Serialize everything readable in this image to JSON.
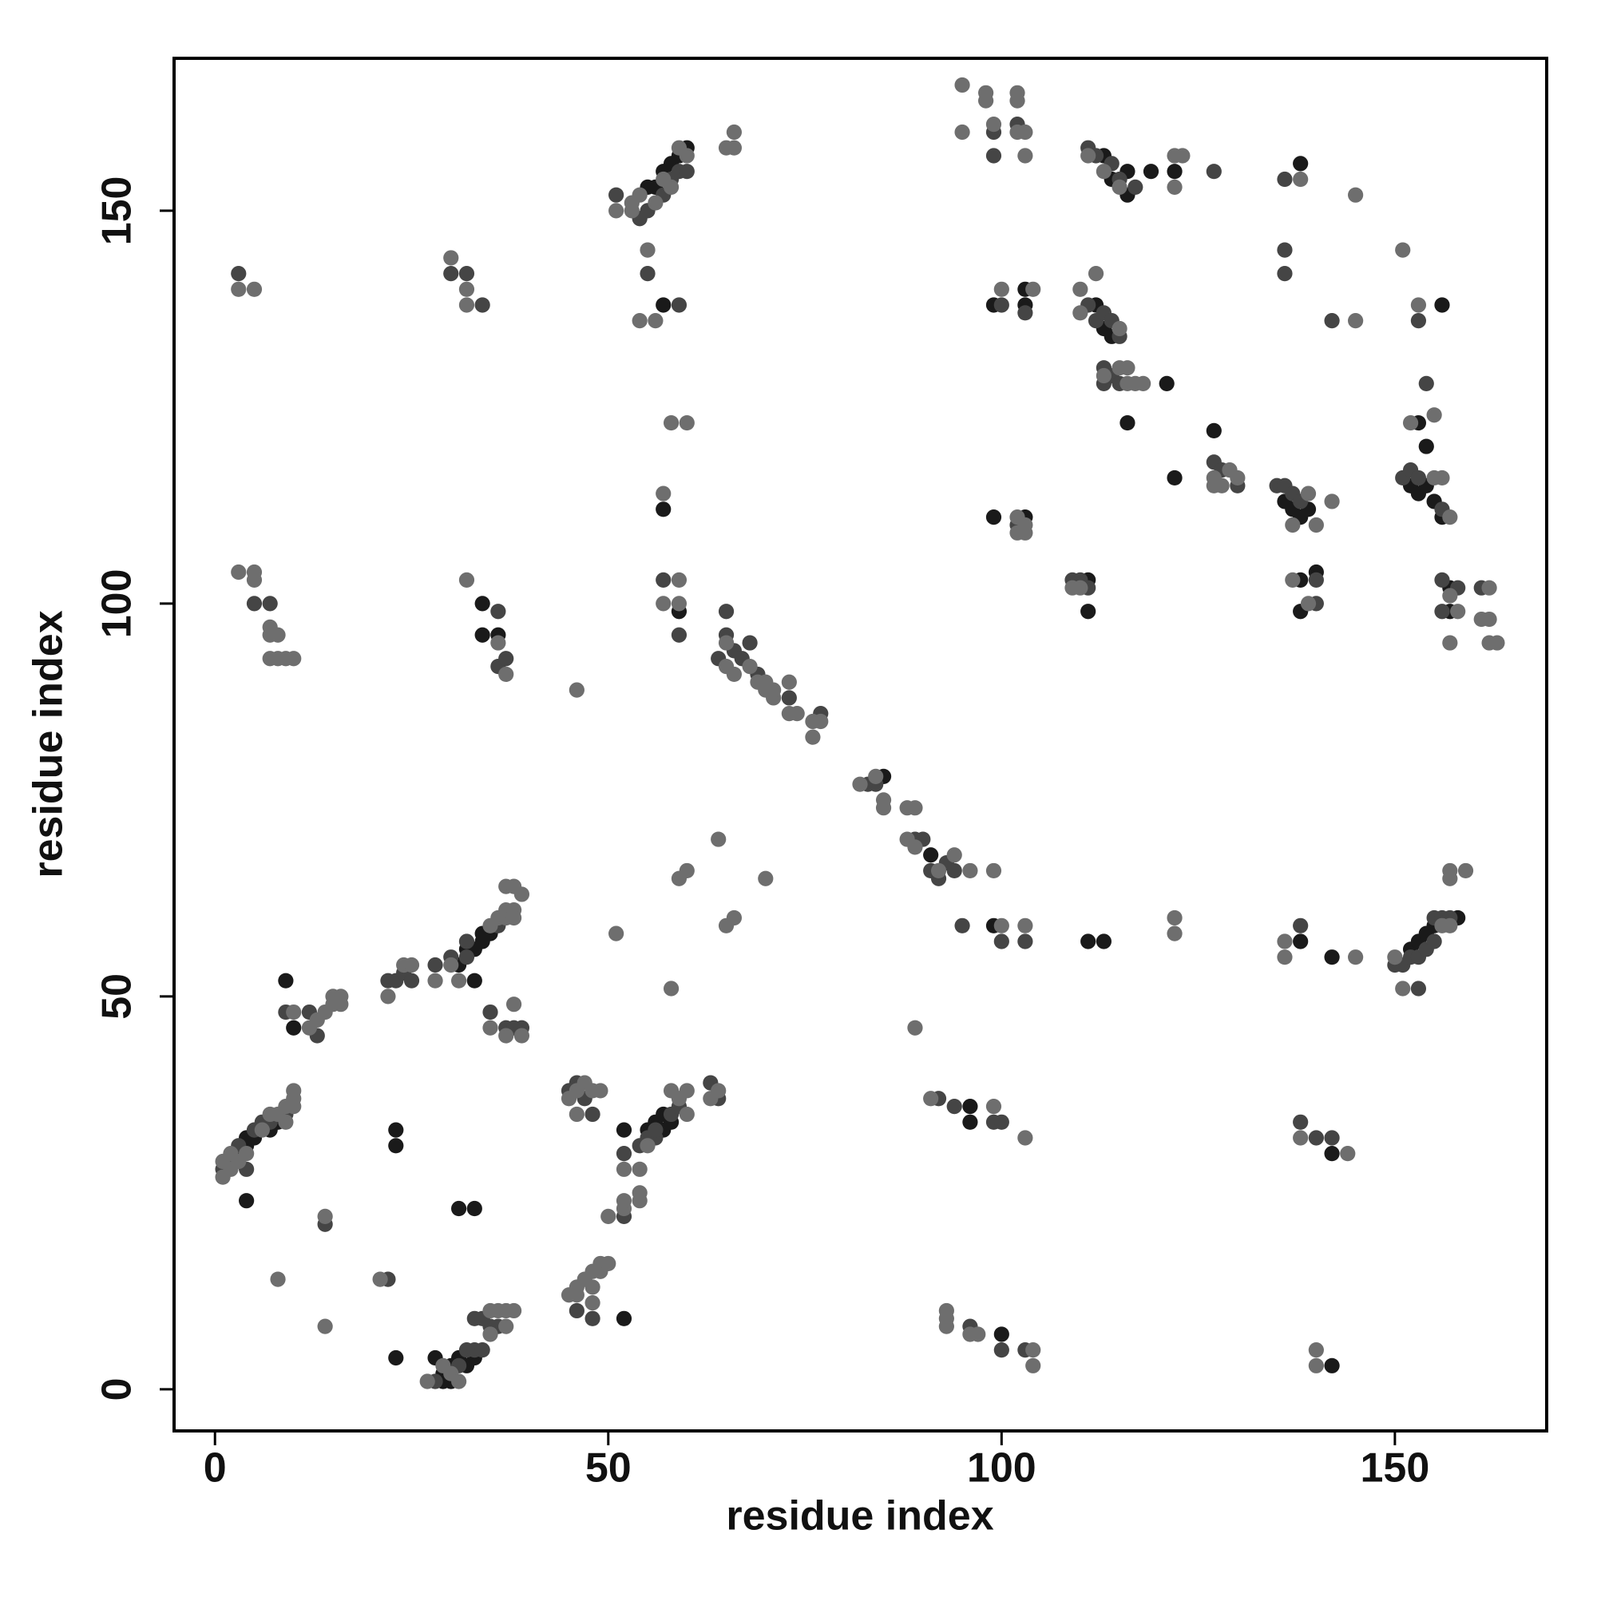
{
  "chart_data": {
    "type": "scatter",
    "x_label": "residue index",
    "y_label": "residue index",
    "xlim": [
      -5.2,
      169.3
    ],
    "ylim": [
      -5.3,
      169.4
    ],
    "xticks": [
      0,
      50,
      100,
      150
    ],
    "yticks": [
      0,
      50,
      100,
      150
    ],
    "series": [
      {
        "color": "#1a1a1a",
        "x": [
          3,
          4,
          4,
          5,
          4,
          7,
          8,
          9,
          10,
          23,
          23,
          23,
          31,
          32,
          33,
          33,
          34,
          34,
          35,
          28,
          29,
          30,
          30,
          31,
          32,
          33,
          31,
          33,
          34,
          34,
          36,
          52,
          52,
          55,
          56,
          57,
          58,
          57,
          55,
          56,
          57,
          58,
          59,
          60,
          57,
          57,
          59,
          85,
          91,
          96,
          96,
          99,
          100,
          99,
          103,
          103,
          99,
          103,
          111,
          111,
          112,
          113,
          114,
          116,
          121,
          113,
          114,
          116,
          116,
          119,
          122,
          122,
          127,
          136,
          137,
          138,
          139,
          138,
          138,
          140,
          138,
          156,
          153,
          154,
          152,
          153,
          154,
          155,
          156,
          157,
          157,
          152,
          153,
          154,
          155,
          158,
          138,
          142,
          142,
          142,
          111,
          113,
          29
        ],
        "y": [
          30,
          31,
          32,
          32,
          24,
          33,
          34,
          52,
          46,
          4,
          33,
          31,
          54,
          56,
          52,
          56,
          57,
          58,
          58,
          4,
          2,
          1,
          3,
          4,
          3,
          4,
          23,
          23,
          100,
          96,
          96,
          9,
          33,
          33,
          34,
          35,
          34,
          33,
          153,
          153,
          155,
          156,
          157,
          158,
          138,
          112,
          99,
          78,
          68,
          36,
          34,
          59,
          7,
          138,
          140,
          138,
          111,
          111,
          103,
          99,
          138,
          135,
          134,
          123,
          128,
          157,
          154,
          155,
          152,
          155,
          155,
          116,
          122,
          113,
          112,
          111,
          112,
          103,
          99,
          104,
          156,
          138,
          123,
          120,
          115,
          114,
          115,
          113,
          111,
          102,
          99,
          56,
          57,
          58,
          59,
          60,
          57,
          55,
          30,
          3,
          57,
          57,
          1
        ]
      },
      {
        "color": "#454545",
        "x": [
          1,
          2,
          3,
          5,
          6,
          7,
          9,
          4,
          9,
          12,
          13,
          14,
          22,
          22,
          23,
          24,
          25,
          28,
          30,
          32,
          32,
          36,
          35,
          37,
          38,
          39,
          28,
          31,
          32,
          33,
          34,
          33,
          35,
          36,
          34,
          36,
          36,
          37,
          5,
          7,
          3,
          30,
          32,
          34,
          45,
          46,
          47,
          48,
          46,
          48,
          52,
          52,
          54,
          55,
          56,
          56,
          58,
          59,
          63,
          64,
          51,
          54,
          55,
          57,
          58,
          59,
          60,
          55,
          59,
          57,
          59,
          65,
          65,
          66,
          64,
          67,
          68,
          69,
          73,
          77,
          83,
          84,
          89,
          90,
          91,
          92,
          93,
          94,
          92,
          94,
          99,
          100,
          95,
          100,
          103,
          96,
          100,
          99,
          102,
          99,
          100,
          103,
          102,
          109,
          110,
          111,
          111,
          112,
          113,
          114,
          115,
          113,
          113,
          114,
          115,
          111,
          112,
          114,
          115,
          117,
          127,
          127,
          128,
          130,
          135,
          136,
          137,
          138,
          140,
          140,
          136,
          136,
          136,
          142,
          153,
          154,
          151,
          152,
          153,
          156,
          156,
          158,
          156,
          161,
          150,
          151,
          152,
          153,
          153,
          154,
          155,
          155,
          156,
          157,
          138,
          138,
          140,
          142,
          103
        ],
        "y": [
          28,
          29,
          31,
          33,
          34,
          34,
          35,
          28,
          48,
          48,
          45,
          21,
          14,
          52,
          52,
          53,
          52,
          54,
          55,
          55,
          57,
          59,
          48,
          46,
          46,
          46,
          1,
          3,
          5,
          5,
          5,
          9,
          8,
          8,
          9,
          99,
          92,
          93,
          100,
          100,
          142,
          142,
          142,
          138,
          38,
          39,
          37,
          35,
          10,
          9,
          22,
          30,
          31,
          32,
          32,
          33,
          35,
          36,
          39,
          37,
          152,
          149,
          150,
          152,
          154,
          155,
          155,
          142,
          138,
          103,
          96,
          99,
          96,
          94,
          93,
          93,
          95,
          91,
          88,
          86,
          77,
          77,
          70,
          70,
          66,
          65,
          67,
          66,
          37,
          36,
          34,
          34,
          59,
          57,
          57,
          8,
          5,
          157,
          161,
          160,
          138,
          137,
          110,
          103,
          103,
          102,
          138,
          136,
          137,
          136,
          134,
          130,
          128,
          129,
          128,
          158,
          157,
          156,
          154,
          153,
          155,
          118,
          117,
          115,
          115,
          115,
          114,
          113,
          103,
          100,
          154,
          145,
          142,
          136,
          136,
          128,
          116,
          117,
          116,
          112,
          103,
          102,
          99,
          102,
          54,
          54,
          55,
          55,
          51,
          56,
          57,
          60,
          60,
          60,
          59,
          34,
          32,
          32,
          5
        ]
      },
      {
        "color": "#6e6e6e",
        "x": [
          1,
          1,
          2,
          2,
          3,
          4,
          6,
          7,
          8,
          9,
          9,
          10,
          10,
          10,
          10,
          12,
          13,
          14,
          15,
          15,
          16,
          16,
          14,
          8,
          14,
          21,
          22,
          24,
          25,
          28,
          30,
          31,
          35,
          36,
          37,
          37,
          38,
          38,
          37,
          38,
          39,
          35,
          37,
          38,
          39,
          27,
          29,
          30,
          31,
          35,
          35,
          36,
          37,
          37,
          38,
          32,
          36,
          37,
          3,
          5,
          5,
          7,
          7,
          8,
          7,
          8,
          9,
          10,
          3,
          5,
          30,
          32,
          32,
          46,
          45,
          47,
          48,
          49,
          46,
          46,
          45,
          46,
          47,
          48,
          48,
          49,
          49,
          50,
          48,
          50,
          52,
          52,
          52,
          54,
          54,
          54,
          55,
          58,
          60,
          64,
          63,
          60,
          59,
          46,
          51,
          58,
          59,
          60,
          64,
          65,
          66,
          70,
          51,
          53,
          53,
          54,
          56,
          57,
          58,
          60,
          59,
          65,
          66,
          66,
          55,
          54,
          56,
          58,
          60,
          57,
          57,
          59,
          59,
          65,
          65,
          66,
          68,
          69,
          70,
          70,
          71,
          71,
          73,
          73,
          74,
          76,
          76,
          77,
          82,
          84,
          85,
          85,
          88,
          89,
          88,
          89,
          92,
          94,
          96,
          99,
          89,
          91,
          99,
          103,
          100,
          103,
          93,
          93,
          93,
          96,
          97,
          104,
          104,
          95,
          95,
          98,
          98,
          99,
          102,
          102,
          102,
          103,
          103,
          100,
          104,
          102,
          103,
          102,
          103,
          109,
          110,
          110,
          110,
          112,
          115,
          113,
          115,
          116,
          116,
          117,
          118,
          111,
          113,
          115,
          122,
          122,
          123,
          127,
          128,
          127,
          130,
          129,
          140,
          142,
          137,
          137,
          139,
          138,
          145,
          145,
          151,
          153,
          152,
          155,
          155,
          156,
          157,
          157,
          158,
          157,
          162,
          161,
          162,
          162,
          163,
          157,
          157,
          159,
          150,
          151,
          156,
          157,
          136,
          136,
          145,
          122,
          122,
          138,
          144,
          140,
          140,
          139
        ],
        "y": [
          27,
          29,
          28,
          30,
          29,
          30,
          33,
          35,
          35,
          34,
          36,
          36,
          37,
          38,
          48,
          46,
          47,
          48,
          49,
          50,
          49,
          50,
          22,
          14,
          8,
          14,
          50,
          54,
          54,
          52,
          54,
          52,
          59,
          60,
          60,
          61,
          61,
          60,
          64,
          64,
          63,
          46,
          45,
          49,
          45,
          1,
          3,
          2,
          1,
          7,
          10,
          10,
          10,
          8,
          10,
          103,
          95,
          91,
          104,
          104,
          103,
          97,
          96,
          96,
          93,
          93,
          93,
          93,
          140,
          140,
          144,
          140,
          138,
          38,
          37,
          39,
          38,
          38,
          35,
          12,
          12,
          13,
          14,
          15,
          13,
          15,
          16,
          16,
          11,
          22,
          23,
          24,
          28,
          24,
          25,
          28,
          31,
          38,
          38,
          38,
          37,
          35,
          37,
          89,
          58,
          51,
          65,
          66,
          70,
          59,
          60,
          65,
          150,
          150,
          151,
          152,
          151,
          154,
          153,
          157,
          158,
          158,
          158,
          160,
          145,
          136,
          136,
          123,
          123,
          114,
          100,
          103,
          100,
          92,
          95,
          91,
          92,
          90,
          89,
          90,
          88,
          89,
          90,
          86,
          86,
          85,
          83,
          85,
          77,
          78,
          75,
          74,
          74,
          74,
          70,
          69,
          66,
          68,
          66,
          66,
          46,
          37,
          36,
          32,
          59,
          59,
          8,
          10,
          9,
          7,
          7,
          5,
          3,
          166,
          160,
          165,
          164,
          161,
          165,
          164,
          160,
          160,
          157,
          140,
          140,
          111,
          110,
          109,
          109,
          102,
          102,
          137,
          140,
          142,
          135,
          129,
          130,
          130,
          128,
          128,
          128,
          157,
          155,
          153,
          157,
          153,
          157,
          116,
          115,
          115,
          116,
          117,
          110,
          113,
          110,
          103,
          100,
          154,
          136,
          152,
          145,
          138,
          123,
          124,
          116,
          116,
          111,
          101,
          99,
          95,
          102,
          98,
          98,
          95,
          95,
          66,
          65,
          66,
          55,
          51,
          59,
          59,
          55,
          57,
          55,
          60,
          58,
          32,
          30,
          5,
          3,
          114
        ]
      }
    ]
  }
}
